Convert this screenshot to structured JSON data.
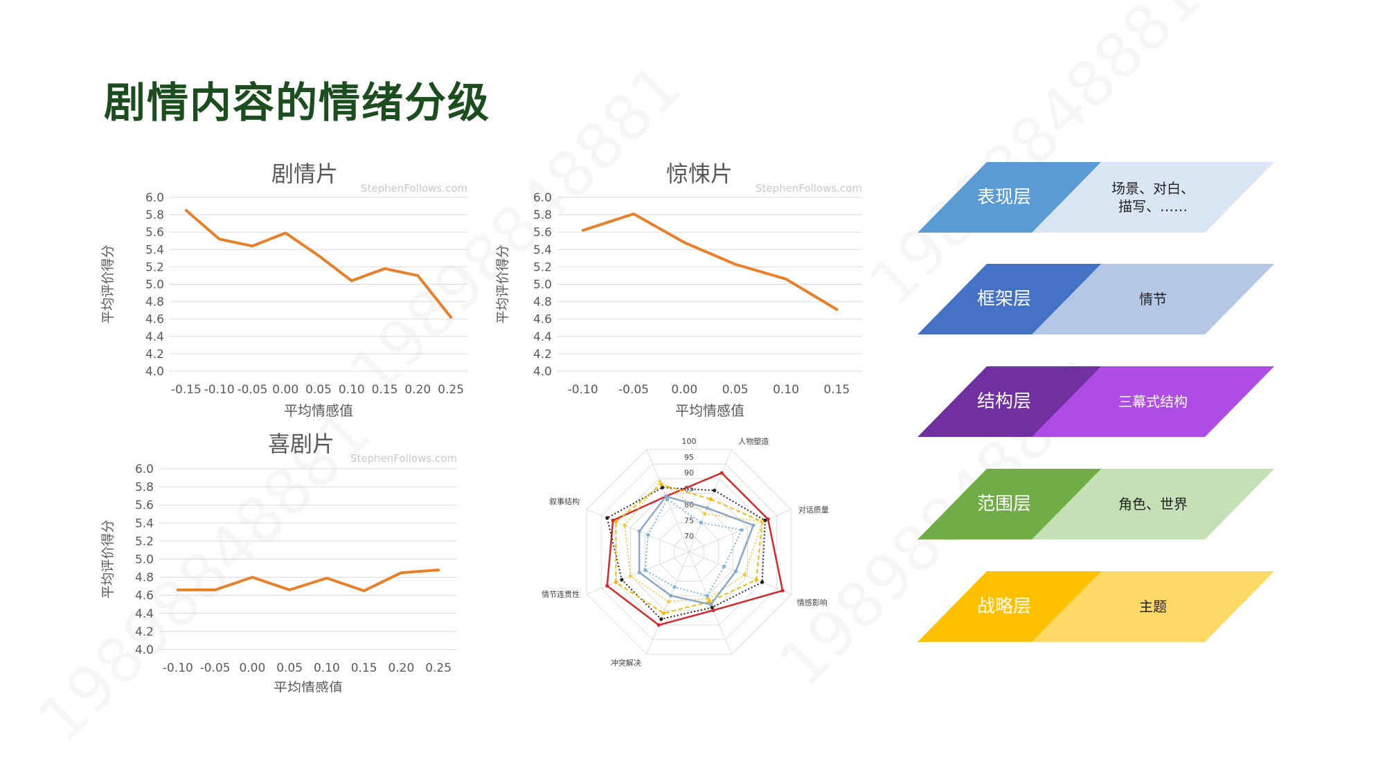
{
  "title": "剧情内容的情绪分级",
  "watermark_text": "19898848881",
  "charts": [
    {
      "type": "line",
      "title": "剧情片",
      "source": "StephenFollows.com",
      "xlabel": "平均情感值",
      "ylabel": "平均评价得分",
      "x_ticks": [
        "-0.15",
        "-0.10",
        "-0.05",
        "0.00",
        "0.05",
        "0.10",
        "0.15",
        "0.20",
        "0.25"
      ],
      "y_ticks": [
        "6.0",
        "5.8",
        "5.6",
        "5.4",
        "5.2",
        "5.0",
        "4.8",
        "4.6",
        "4.4",
        "4.2",
        "4.0"
      ],
      "x": [
        -0.15,
        -0.1,
        -0.05,
        0.0,
        0.05,
        0.1,
        0.15,
        0.2,
        0.25
      ],
      "values": [
        5.85,
        5.52,
        5.44,
        5.59,
        5.33,
        5.04,
        5.18,
        5.1,
        4.62
      ],
      "ylim": [
        4.0,
        6.0
      ],
      "color": "#e8802a"
    },
    {
      "type": "line",
      "title": "惊悚片",
      "source": "StephenFollows.com",
      "xlabel": "平均情感值",
      "ylabel": "平均评价得分",
      "x_ticks": [
        "-0.10",
        "-0.05",
        "0.00",
        "0.05",
        "0.10",
        "0.15"
      ],
      "y_ticks": [
        "6.0",
        "5.8",
        "5.6",
        "5.4",
        "5.2",
        "5.0",
        "4.8",
        "4.6",
        "4.4",
        "4.2",
        "4.0"
      ],
      "x": [
        -0.1,
        -0.05,
        0.0,
        0.05,
        0.1,
        0.15
      ],
      "values": [
        5.62,
        5.81,
        5.48,
        5.23,
        5.06,
        4.71
      ],
      "ylim": [
        4.0,
        6.0
      ],
      "color": "#e8802a"
    },
    {
      "type": "line",
      "title": "喜剧片",
      "source": "StephenFollows.com",
      "xlabel": "平均情感值",
      "ylabel": "平均评价得分",
      "x_ticks": [
        "-0.10",
        "-0.05",
        "0.00",
        "0.05",
        "0.10",
        "0.15",
        "0.20",
        "0.25"
      ],
      "y_ticks": [
        "6.0",
        "5.8",
        "5.6",
        "5.4",
        "5.2",
        "5.0",
        "4.8",
        "4.6",
        "4.4",
        "4.2",
        "4.0"
      ],
      "x": [
        -0.1,
        -0.05,
        0.0,
        0.05,
        0.1,
        0.15,
        0.2,
        0.25
      ],
      "values": [
        4.66,
        4.66,
        4.8,
        4.66,
        4.79,
        4.65,
        4.85,
        4.88
      ],
      "ylim": [
        4.0,
        6.0
      ],
      "color": "#e8802a"
    }
  ],
  "chart_data": {
    "type": "radar",
    "axes": [
      "人物塑造",
      "对话质量",
      "情感影响",
      "",
      "冲突解决",
      "情节连贯性",
      "叙事结构",
      ""
    ],
    "ticks": [
      "100",
      "95",
      "90",
      "85",
      "80",
      "75",
      "70"
    ],
    "range": [
      65,
      100
    ],
    "series": [
      {
        "color": "#d62728",
        "style": "solid",
        "values": [
          92,
          92,
          97,
          85,
          90,
          93,
          91,
          84
        ]
      },
      {
        "color": "#222222",
        "style": "dotted",
        "values": [
          86,
          91,
          90,
          84,
          88,
          88,
          93,
          87
        ]
      },
      {
        "color": "#f2b705",
        "style": "dashed",
        "values": [
          83,
          90,
          88,
          82,
          86,
          90,
          90,
          88
        ]
      },
      {
        "color": "#f5c842",
        "style": "dotted",
        "values": [
          78,
          90,
          84,
          81,
          82,
          85,
          87,
          89
        ]
      },
      {
        "color": "#8aa7c9",
        "style": "solid",
        "values": [
          80,
          87,
          81,
          83,
          80,
          82,
          82,
          84
        ]
      },
      {
        "color": "#7ab4d9",
        "style": "dotted",
        "values": [
          75,
          83,
          77,
          80,
          77,
          80,
          79,
          83
        ]
      }
    ]
  },
  "layers": [
    {
      "name": "表现层",
      "desc": "场景、对白、\n描写、……",
      "dark": "#5b9bd5",
      "light": "#dae6f4",
      "desc_color": "#222222"
    },
    {
      "name": "框架层",
      "desc": "情节",
      "dark": "#4472c4",
      "light": "#b4c7e7",
      "desc_color": "#222222"
    },
    {
      "name": "结构层",
      "desc": "三幕式结构",
      "dark": "#7030a0",
      "light": "#b04ce6",
      "desc_color": "#ffffff"
    },
    {
      "name": "范围层",
      "desc": "角色、世界",
      "dark": "#70ad47",
      "light": "#c5e0b4",
      "desc_color": "#222222"
    },
    {
      "name": "战略层",
      "desc": "主题",
      "dark": "#ffc000",
      "light": "#ffd966",
      "desc_color": "#222222"
    }
  ]
}
